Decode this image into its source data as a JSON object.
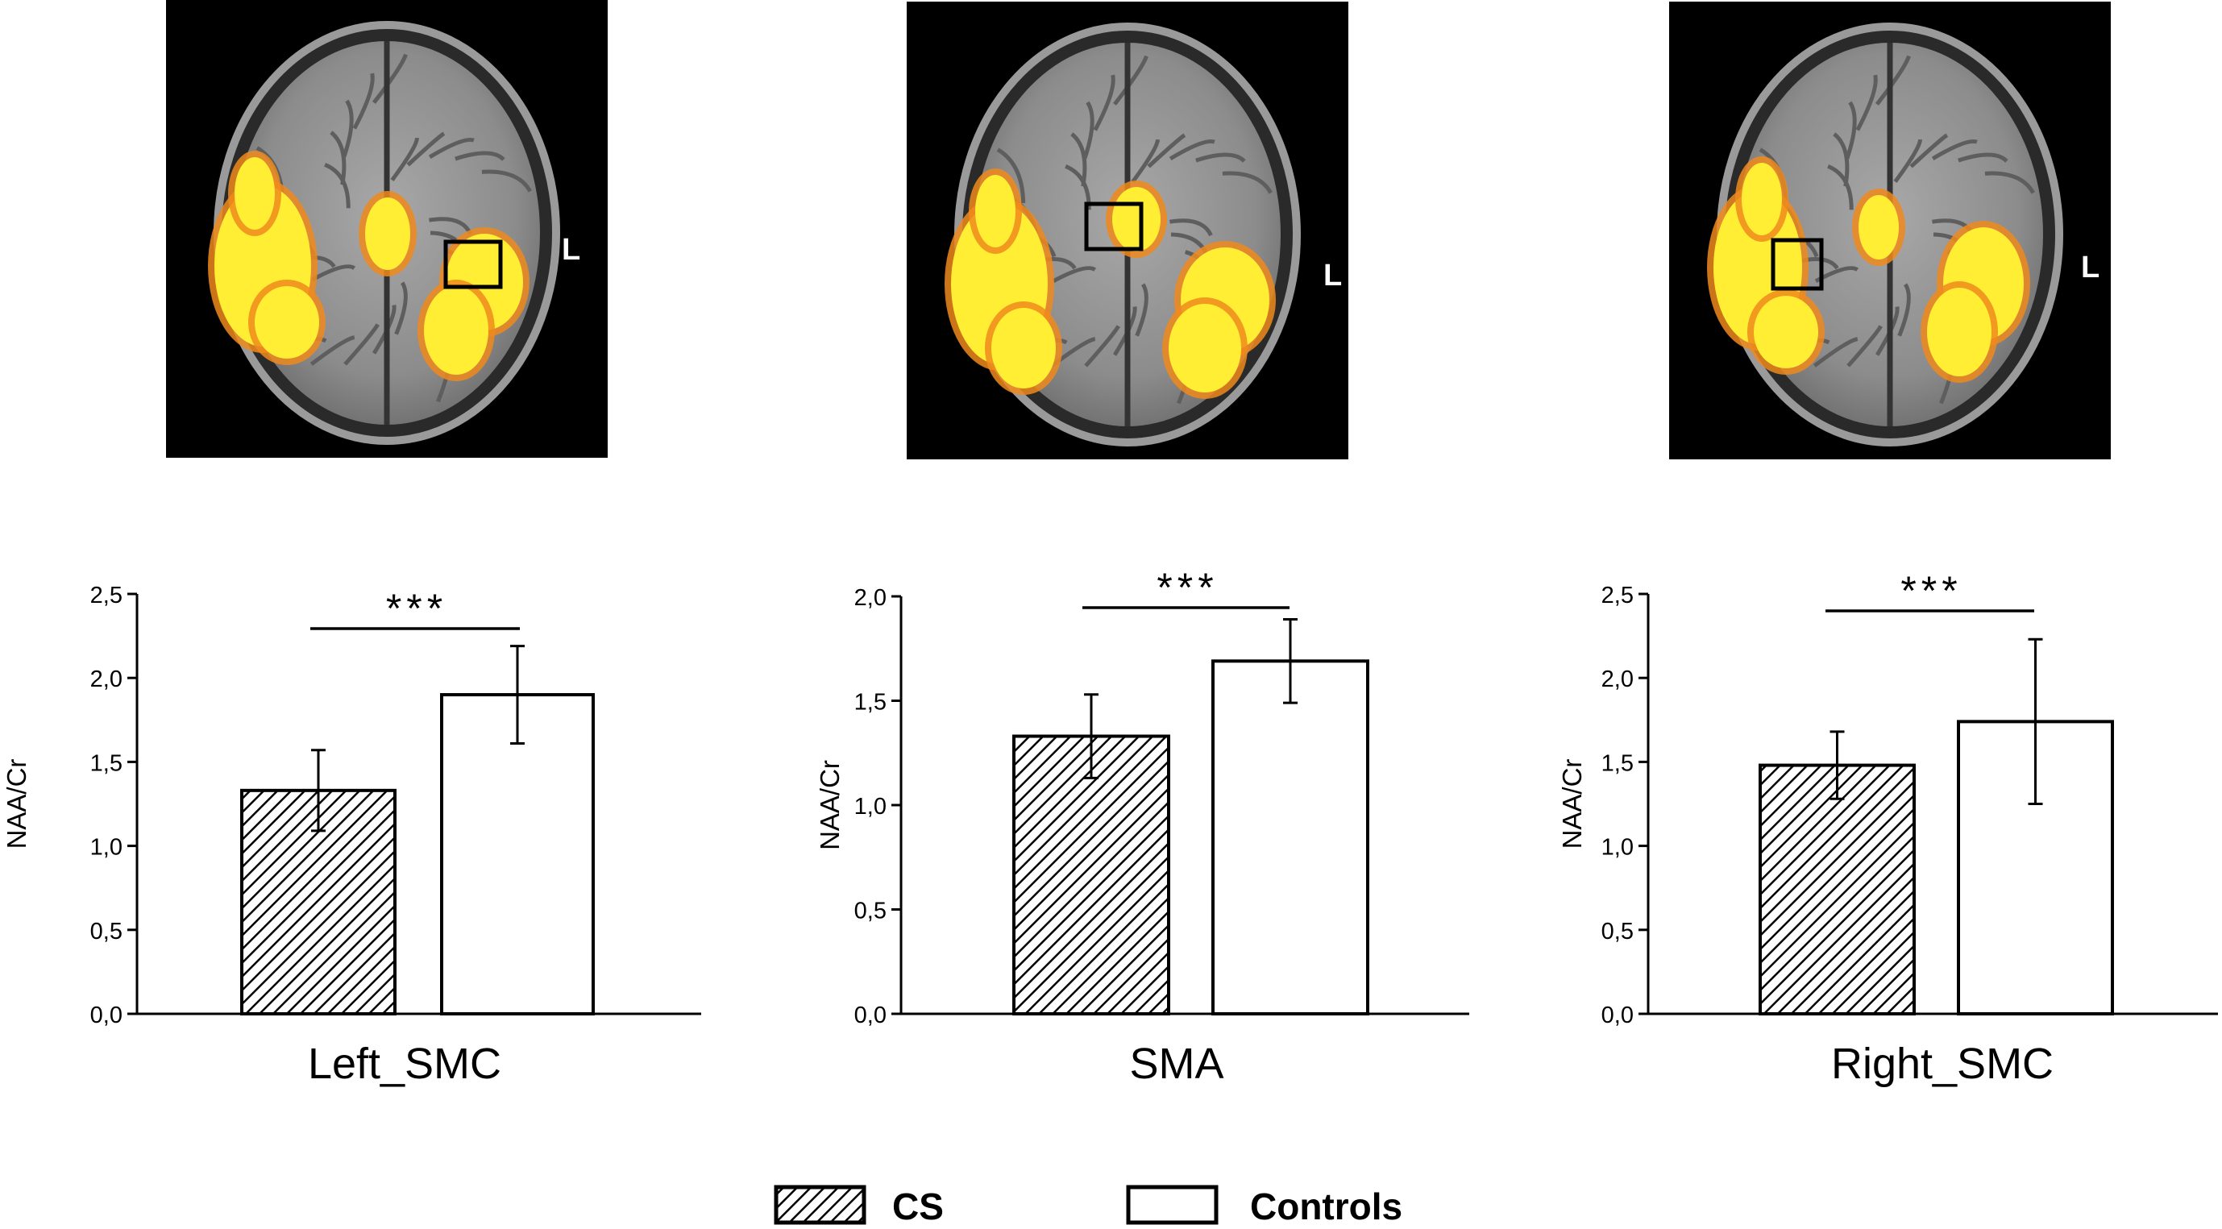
{
  "orientation_label": "L",
  "legend": {
    "items": [
      {
        "label": "CS",
        "pattern": "hatched"
      },
      {
        "label": "Controls",
        "pattern": "open"
      }
    ]
  },
  "colors": {
    "background": "#ffffff",
    "bar_stroke": "#000000",
    "hatch": "#000000",
    "mri_background": "#000000",
    "activation_core": "#ffee33",
    "activation_edge": "#f08a1c"
  },
  "panels": [
    {
      "roi_side": "left",
      "roi_box_region": "left hemisphere motor cortex"
    },
    {
      "roi_side": "center",
      "roi_box_region": "supplementary motor area"
    },
    {
      "roi_side": "right",
      "roi_box_region": "right hemisphere motor cortex"
    }
  ],
  "chart_data": [
    {
      "type": "bar",
      "xlabel": "Left_SMC",
      "ylabel": "NAA/Cr",
      "ylim": [
        0,
        2.5
      ],
      "yticks": [
        "0,0",
        "0,5",
        "1,0",
        "1,5",
        "2,0",
        "2,5"
      ],
      "ytick_values": [
        0,
        0.5,
        1.0,
        1.5,
        2.0,
        2.5
      ],
      "series": [
        {
          "name": "CS",
          "value": 1.33,
          "error": 0.24
        },
        {
          "name": "Controls",
          "value": 1.9,
          "error": 0.29
        }
      ],
      "significance": "***",
      "grid": false
    },
    {
      "type": "bar",
      "xlabel": "SMA",
      "ylabel": "NAA/Cr",
      "ylim": [
        0,
        2.0
      ],
      "yticks": [
        "0,0",
        "0,5",
        "1,0",
        "1,5",
        "2,0"
      ],
      "ytick_values": [
        0,
        0.5,
        1.0,
        1.5,
        2.0
      ],
      "series": [
        {
          "name": "CS",
          "value": 1.33,
          "error": 0.2
        },
        {
          "name": "Controls",
          "value": 1.69,
          "error": 0.2
        }
      ],
      "significance": "***",
      "grid": false
    },
    {
      "type": "bar",
      "xlabel": "Right_SMC",
      "ylabel": "NAA/Cr",
      "ylim": [
        0,
        2.5
      ],
      "yticks": [
        "0,0",
        "0,5",
        "1,0",
        "1,5",
        "2,0",
        "2,5"
      ],
      "ytick_values": [
        0,
        0.5,
        1.0,
        1.5,
        2.0,
        2.5
      ],
      "series": [
        {
          "name": "CS",
          "value": 1.48,
          "error": 0.2
        },
        {
          "name": "Controls",
          "value": 1.74,
          "error": 0.49
        }
      ],
      "significance": "***",
      "grid": false
    }
  ]
}
